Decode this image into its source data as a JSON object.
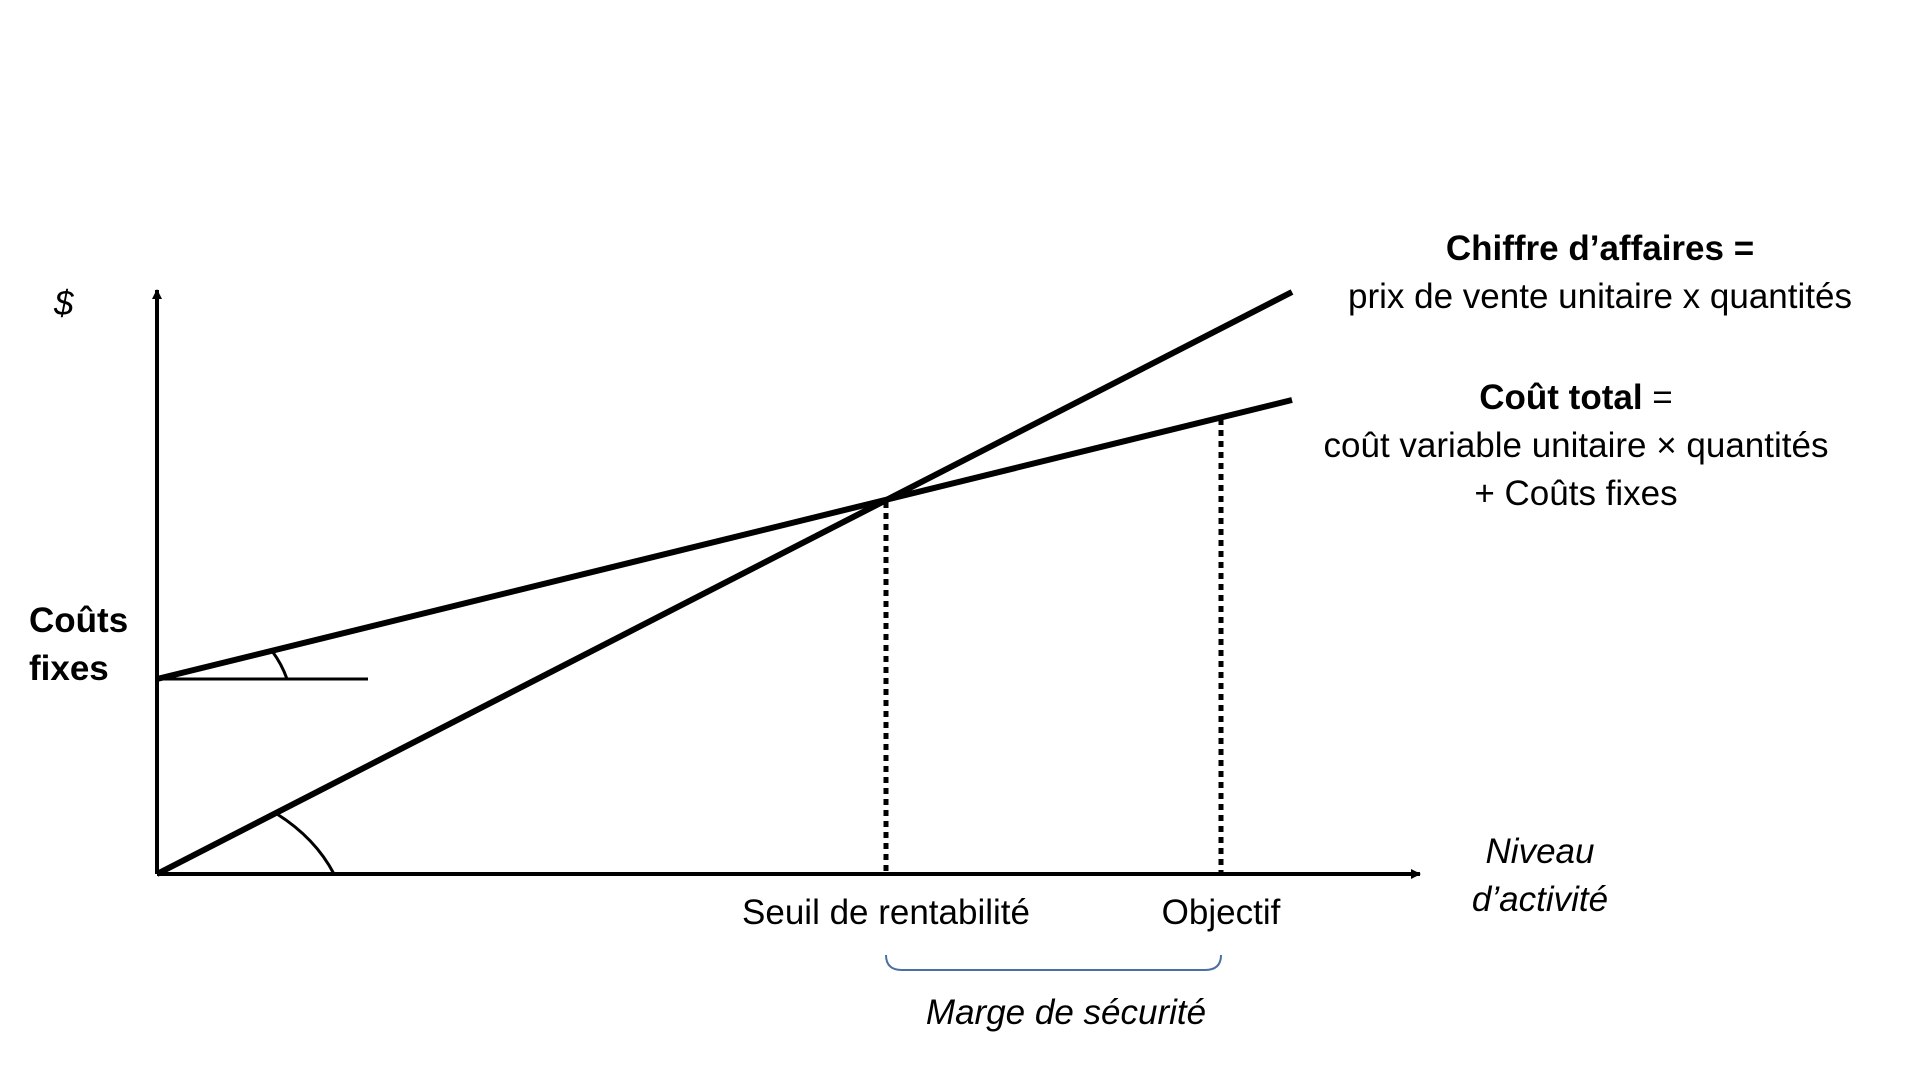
{
  "axes": {
    "y_label": "$",
    "x_label_line1": "Niveau",
    "x_label_line2": "d’activité"
  },
  "fixed_costs": {
    "line1": "Coûts",
    "line2": "fixes"
  },
  "revenue": {
    "title": "Chiffre d’affaires =",
    "formula": "prix de vente unitaire x quantités"
  },
  "total_cost": {
    "title": "Coût total",
    "equals": " =",
    "formula_line1": "coût variable unitaire × quantités",
    "formula_line2": "+ Coûts fixes"
  },
  "markers": {
    "breakeven": "Seuil de rentabilité",
    "objective": "Objectif",
    "safety_margin": "Marge de sécurité"
  },
  "colors": {
    "lines": "#000000",
    "brace": "#4a6fa5"
  }
}
